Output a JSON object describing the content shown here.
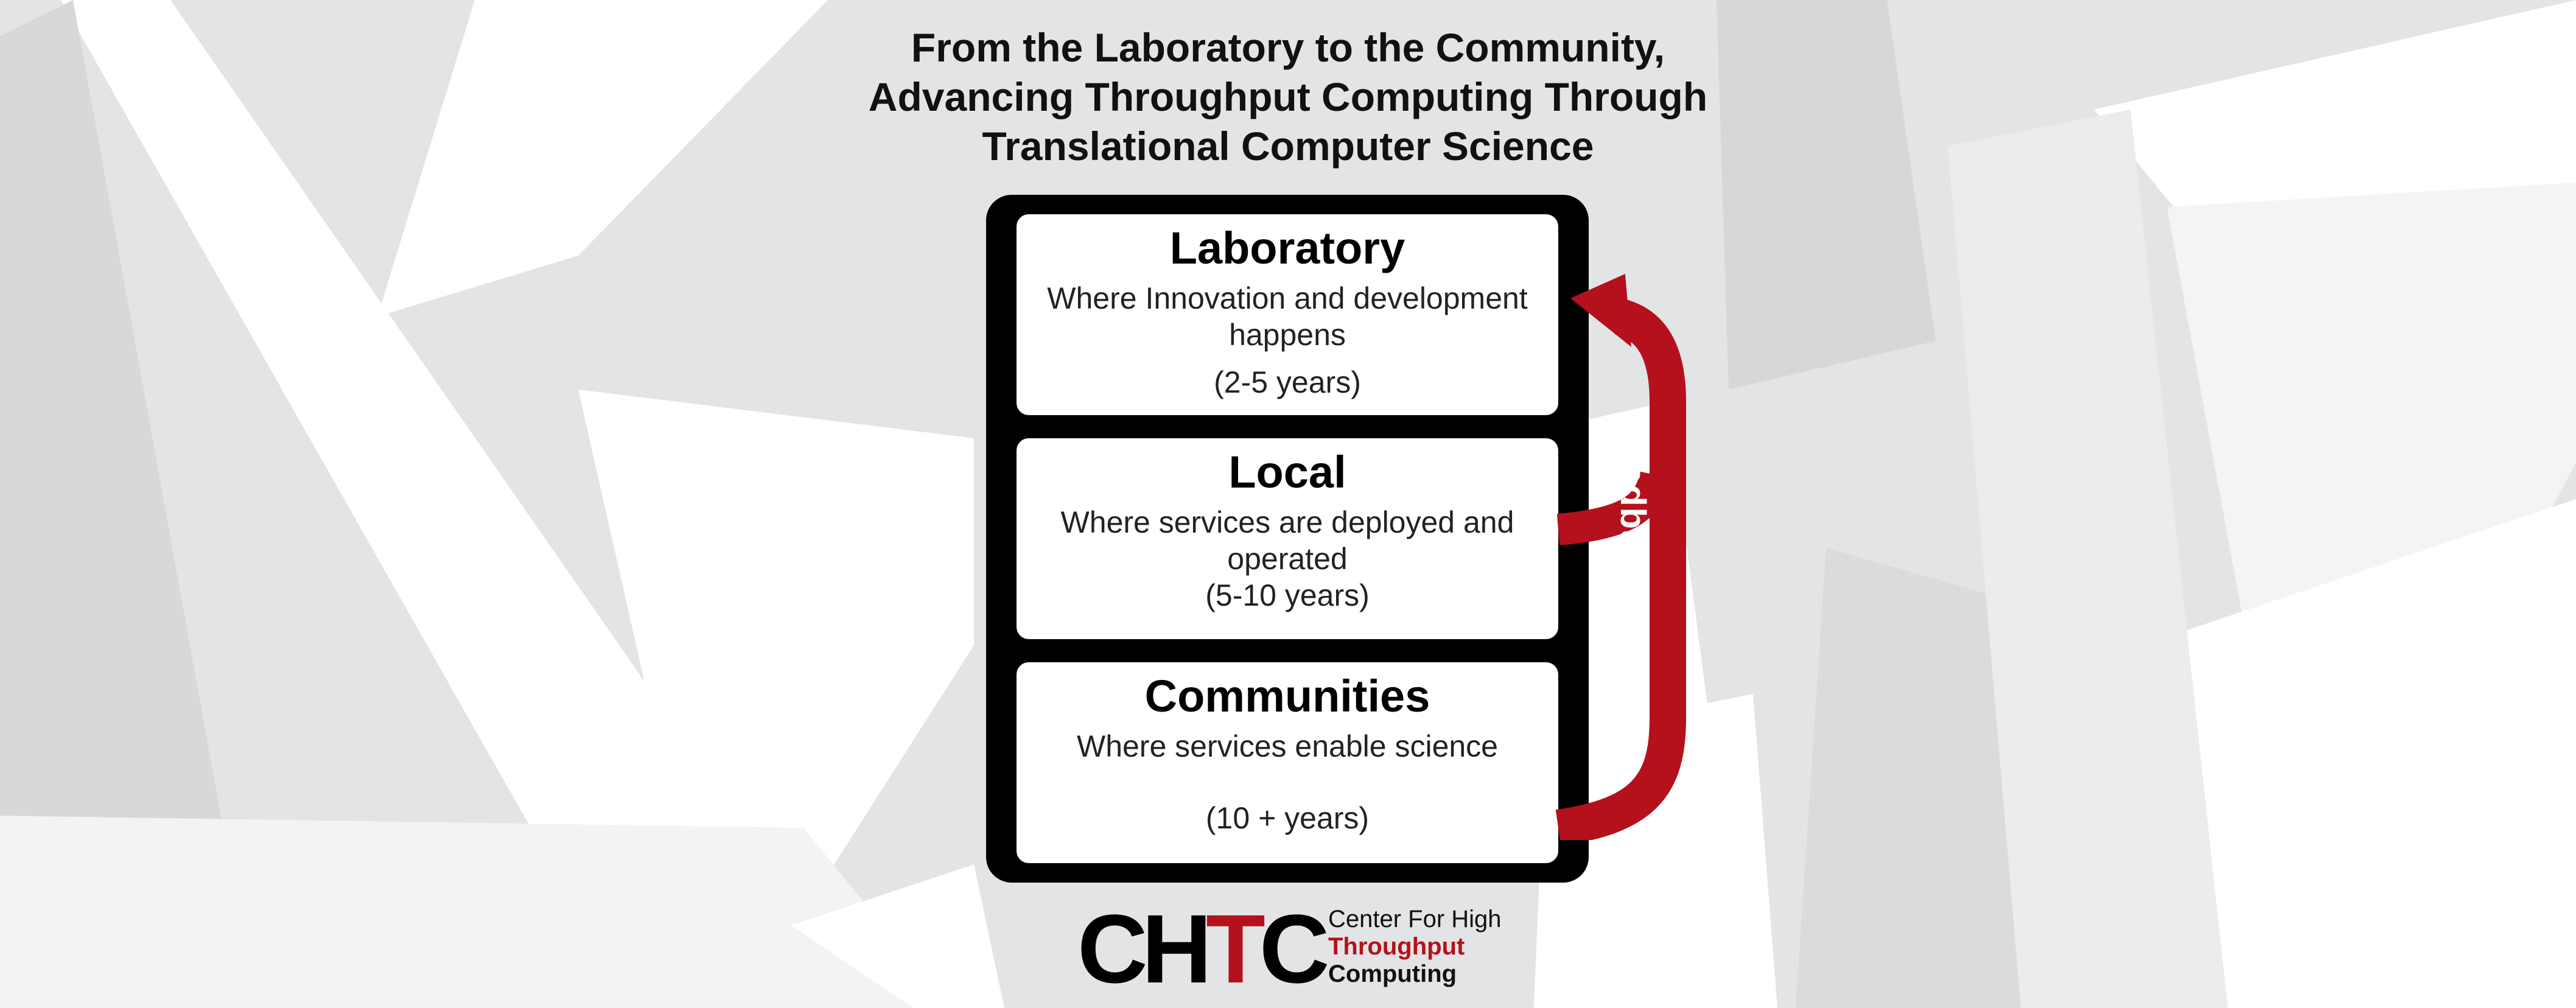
{
  "title": {
    "line1": "From the Laboratory to the Community,",
    "line2": "Advancing Throughput Computing Through",
    "line3": "Translational Computer Science"
  },
  "stages": [
    {
      "name": "Laboratory",
      "description": "Where Innovation and development happens",
      "duration": "(2-5 years)"
    },
    {
      "name": "Local",
      "description": "Where services are deployed and operated",
      "duration": "(5-10 years)"
    },
    {
      "name": "Communities",
      "description": "Where services enable science",
      "duration": "(10 + years)"
    }
  ],
  "feedback": {
    "label": "Feedback Loop"
  },
  "logo": {
    "mark_c": "C",
    "mark_h": "H",
    "mark_t": "T",
    "mark_c2": "C",
    "line1": "Center For High",
    "line2": "Throughput",
    "line3": "Computing"
  },
  "colors": {
    "accent_red": "#b4111d",
    "background": "#e3e4e5",
    "panel": "#000000",
    "card": "#ffffff"
  }
}
